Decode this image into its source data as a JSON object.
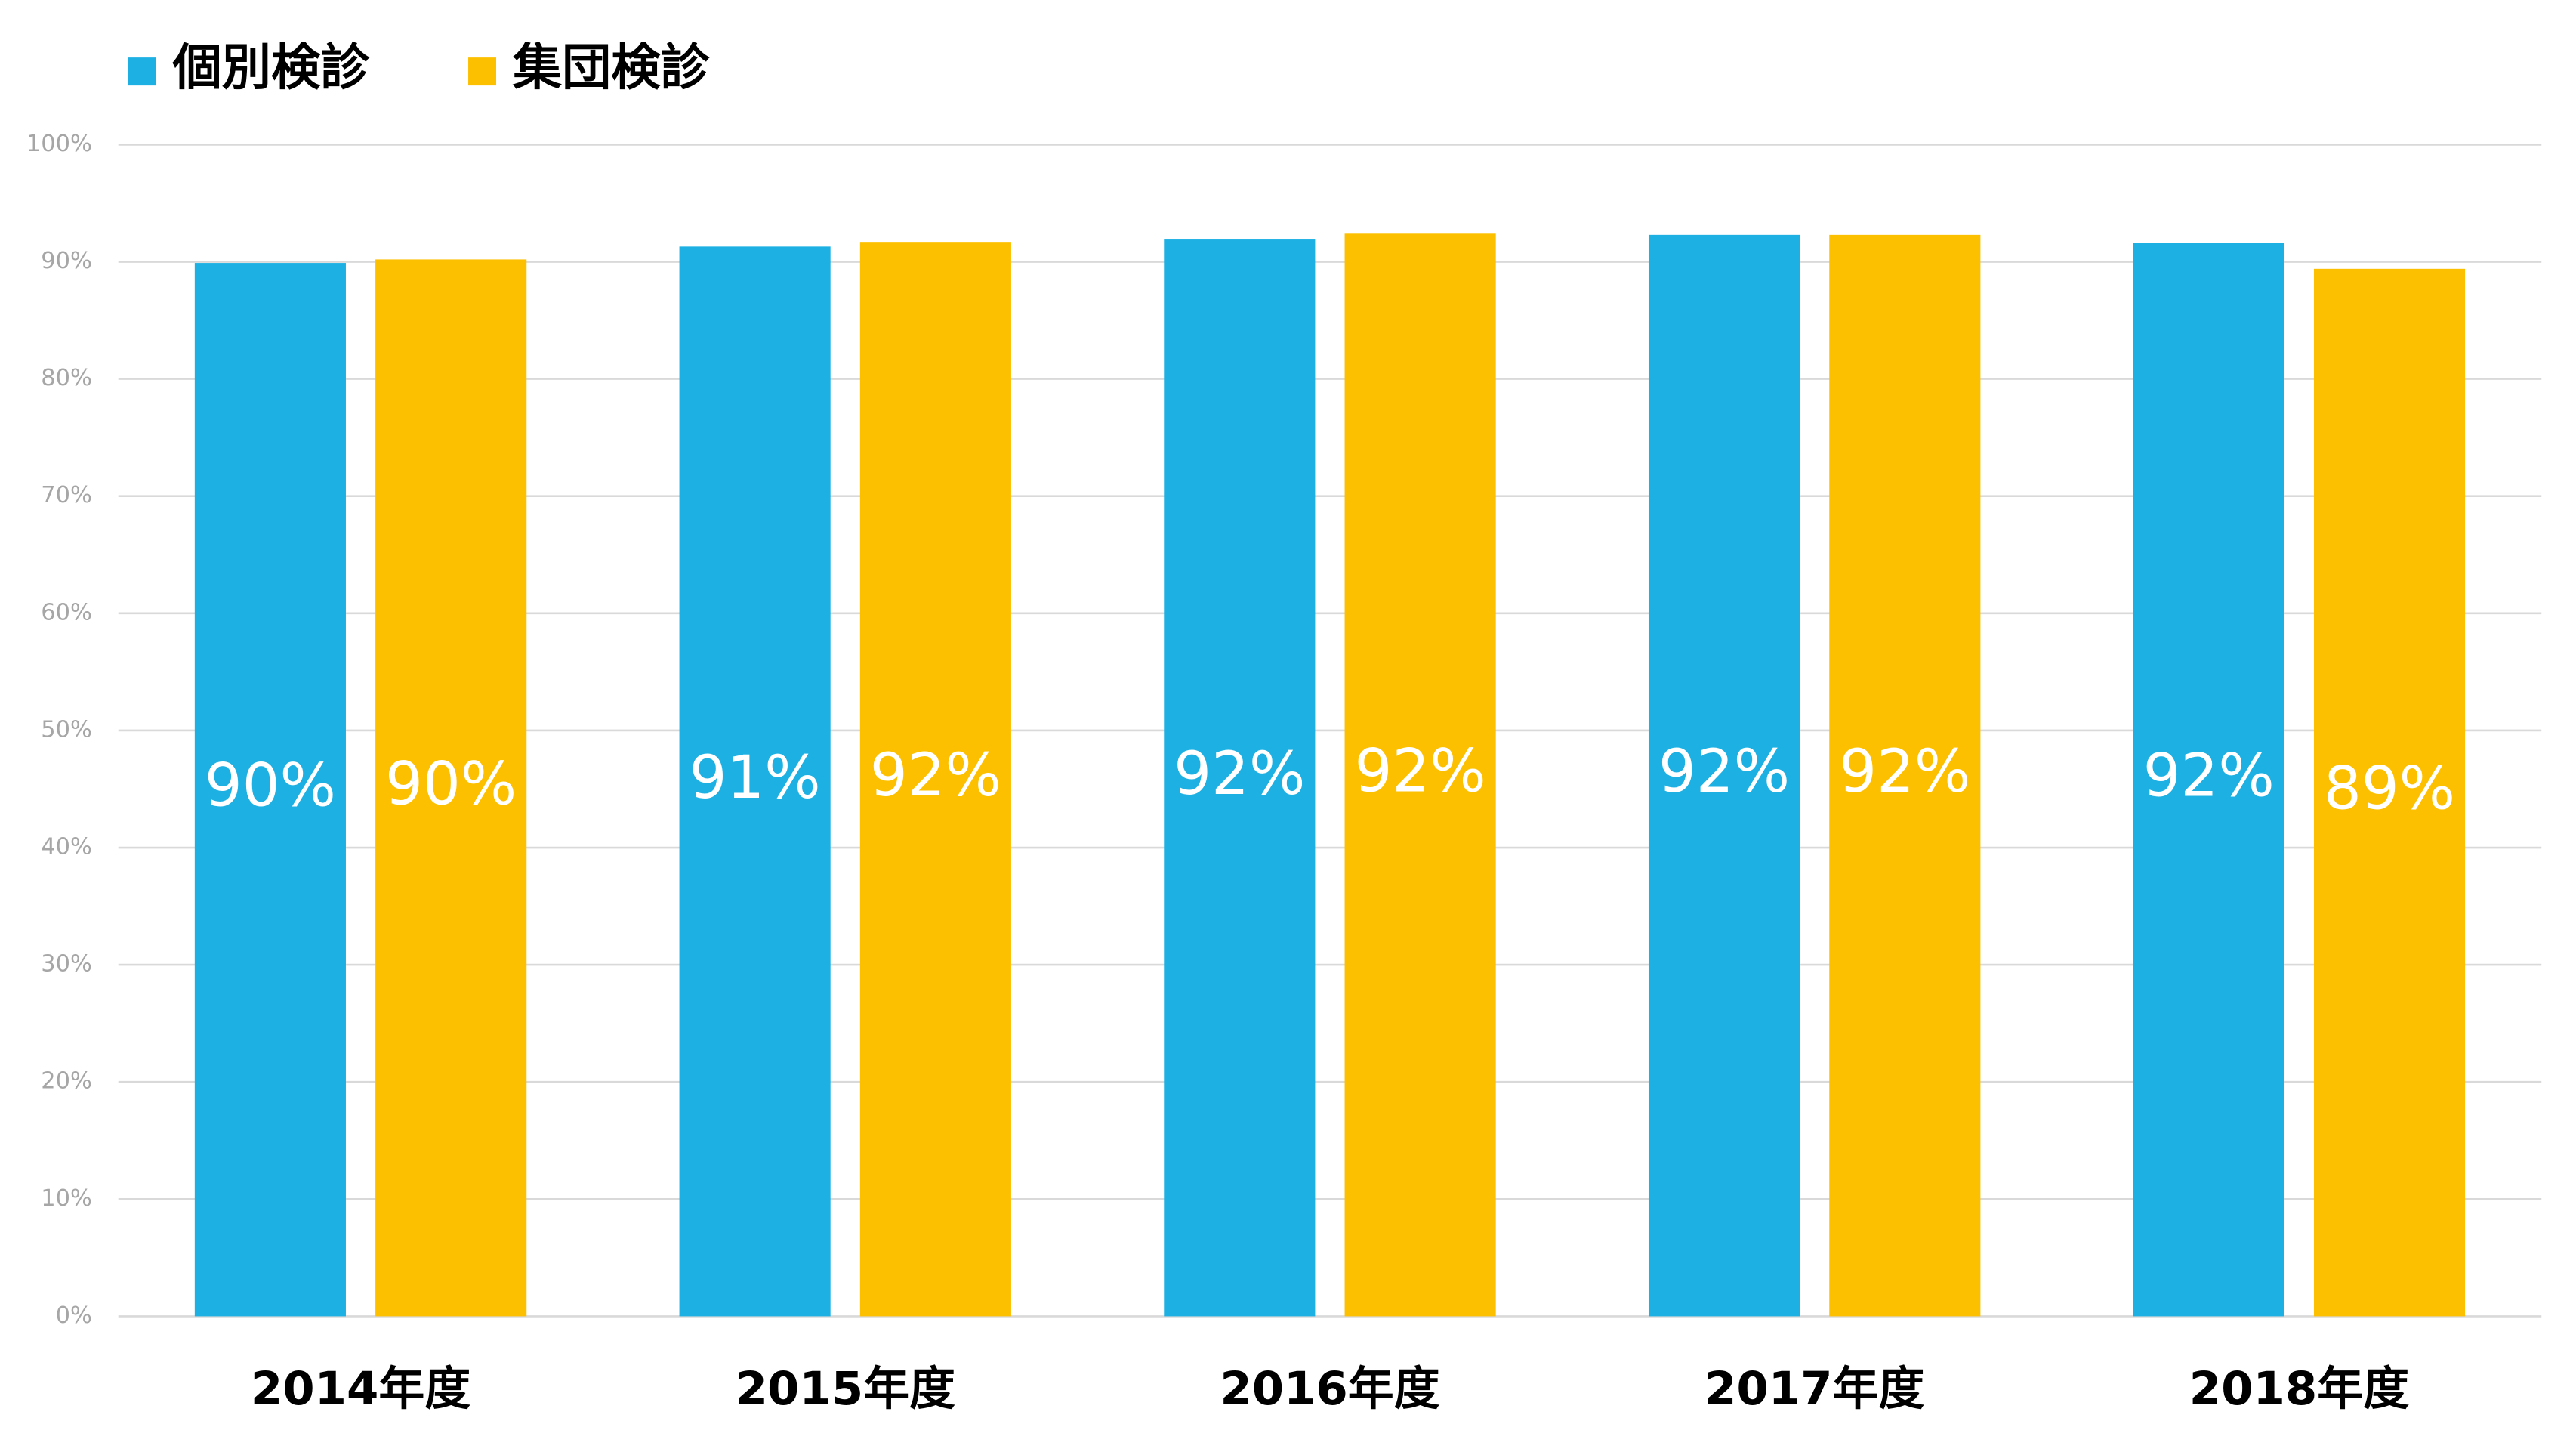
{
  "chart_data": {
    "type": "bar",
    "categories": [
      "2014年度",
      "2015年度",
      "2016年度",
      "2017年度",
      "2018年度"
    ],
    "series": [
      {
        "name": "個別検診",
        "color": "#1cb0e3",
        "values": [
          89.9,
          91.3,
          91.9,
          92.3,
          91.6
        ],
        "value_labels": [
          "90%",
          "91%",
          "92%",
          "92%",
          "92%"
        ]
      },
      {
        "name": "集団検診",
        "color": "#fdc000",
        "values": [
          90.2,
          91.7,
          92.4,
          92.3,
          89.4
        ],
        "value_labels": [
          "90%",
          "92%",
          "92%",
          "92%",
          "89%"
        ]
      }
    ],
    "ylim": [
      0,
      100
    ],
    "yticks": [
      {
        "value": 0,
        "label": "0%"
      },
      {
        "value": 10,
        "label": "10%"
      },
      {
        "value": 20,
        "label": "20%"
      },
      {
        "value": 30,
        "label": "30%"
      },
      {
        "value": 40,
        "label": "40%"
      },
      {
        "value": 50,
        "label": "50%"
      },
      {
        "value": 60,
        "label": "60%"
      },
      {
        "value": 70,
        "label": "70%"
      },
      {
        "value": 80,
        "label": "80%"
      },
      {
        "value": 90,
        "label": "90%"
      },
      {
        "value": 100,
        "label": "100%"
      }
    ],
    "grid": true,
    "legend": "top-left"
  }
}
